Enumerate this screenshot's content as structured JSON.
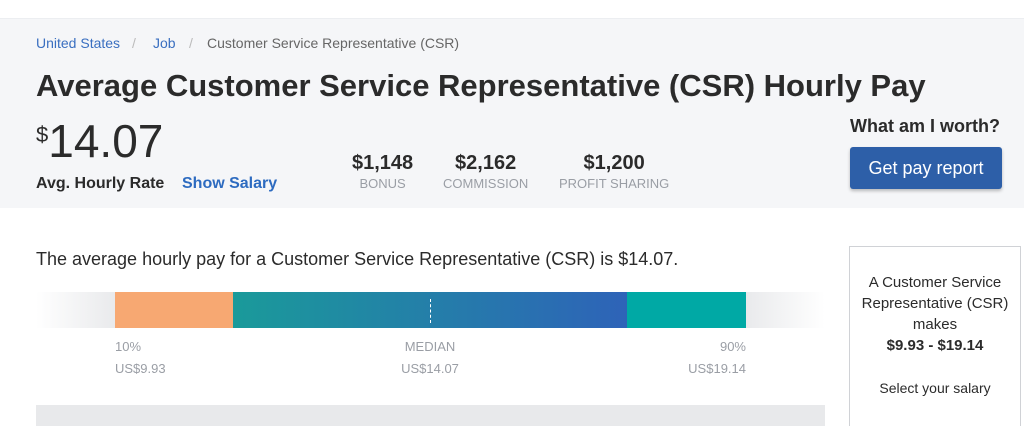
{
  "breadcrumb": [
    "United States",
    "Job",
    "Customer Service Representative (CSR)"
  ],
  "breadcrumb_sep": "/",
  "title": "Average Customer Service Representative (CSR) Hourly Pay",
  "pay": {
    "currency": "$",
    "amount": "14.07",
    "label": "Avg. Hourly Rate",
    "toggle": "Show Salary"
  },
  "stats": [
    {
      "value": "$1,148",
      "label": "BONUS"
    },
    {
      "value": "$2,162",
      "label": "COMMISSION"
    },
    {
      "value": "$1,200",
      "label": "PROFIT SHARING"
    }
  ],
  "cta": {
    "question": "What am I worth?",
    "button": "Get pay report"
  },
  "description": "The average hourly pay for a Customer Service Representative (CSR) is $14.07.",
  "range": {
    "p10_label": "10%",
    "p10_value": "US$9.93",
    "median_label": "MEDIAN",
    "median_value": "US$14.07",
    "p90_label": "90%",
    "p90_value": "US$19.14",
    "colors": {
      "low": "#f7a872",
      "mid_start": "#1a9a9a",
      "mid_end": "#2e63b8",
      "high": "#00a9a5"
    }
  },
  "card": {
    "line1": "A Customer Service",
    "line2": "Representative (CSR)",
    "line3": "makes",
    "line4": "$9.93 - $19.14",
    "line5": "Select your salary"
  }
}
